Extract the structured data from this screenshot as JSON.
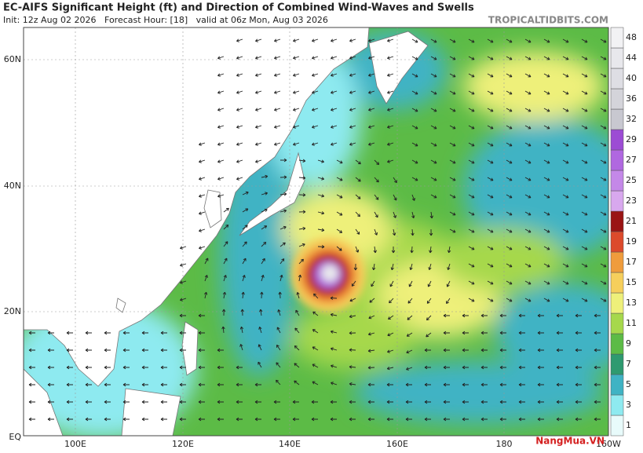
{
  "header": {
    "title": "EC-AIFS Significant Height (ft) and Direction of Combined Wind-Waves and Swells",
    "subtitle": "Init: 12z Aug 02 2026   Forecast Hour: [18]   valid at 06z Mon, Aug 03 2026",
    "source": "TROPICALTIDBITS.COM"
  },
  "map": {
    "lat_labels": [
      "60N",
      "40N",
      "20N",
      "EQ"
    ],
    "lon_labels": [
      "100E",
      "120E",
      "140E",
      "160E",
      "180",
      "160W"
    ]
  },
  "colorbar": {
    "ticks": [
      1,
      3,
      5,
      7,
      9,
      11,
      13,
      15,
      17,
      19,
      21,
      23,
      25,
      27,
      29,
      32,
      36,
      40,
      44,
      48
    ],
    "colors": [
      "#e8fbfb",
      "#8eeaf0",
      "#3fb3c4",
      "#2e9a70",
      "#5cbb46",
      "#a6d84c",
      "#eef07a",
      "#f6cf5c",
      "#ef9c3c",
      "#dc4a2c",
      "#9a1414",
      "#d8a8ee",
      "#c488e8",
      "#b068e0",
      "#9c4cd4",
      "#c8c8d0",
      "#d4d4da",
      "#dedee4",
      "#e8e8ec",
      "#f2f2f4"
    ]
  },
  "watermark": "NangMua.VN"
}
